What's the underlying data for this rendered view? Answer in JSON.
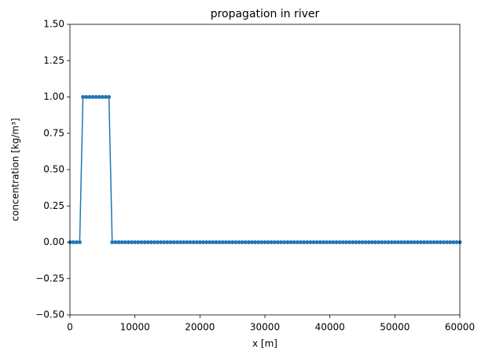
{
  "chart_data": {
    "type": "line",
    "title": "propagation in river",
    "xlabel": "x [m]",
    "ylabel": "concentration [kg/m³]",
    "x": [
      0,
      500,
      1000,
      1500,
      2000,
      2500,
      3000,
      3500,
      4000,
      4500,
      5000,
      5500,
      6000,
      6500,
      7000,
      7500,
      8000,
      8500,
      9000,
      9500,
      10000,
      10500,
      11000,
      11500,
      12000,
      12500,
      13000,
      13500,
      14000,
      14500,
      15000,
      15500,
      16000,
      16500,
      17000,
      17500,
      18000,
      18500,
      19000,
      19500,
      20000,
      20500,
      21000,
      21500,
      22000,
      22500,
      23000,
      23500,
      24000,
      24500,
      25000,
      25500,
      26000,
      26500,
      27000,
      27500,
      28000,
      28500,
      29000,
      29500,
      30000,
      30500,
      31000,
      31500,
      32000,
      32500,
      33000,
      33500,
      34000,
      34500,
      35000,
      35500,
      36000,
      36500,
      37000,
      37500,
      38000,
      38500,
      39000,
      39500,
      40000,
      40500,
      41000,
      41500,
      42000,
      42500,
      43000,
      43500,
      44000,
      44500,
      45000,
      45500,
      46000,
      46500,
      47000,
      47500,
      48000,
      48500,
      49000,
      49500,
      50000,
      50500,
      51000,
      51500,
      52000,
      52500,
      53000,
      53500,
      54000,
      54500,
      55000,
      55500,
      56000,
      56500,
      57000,
      57500,
      58000,
      58500,
      59000,
      59500,
      60000
    ],
    "series": [
      {
        "color": "#1f77b4",
        "values": [
          0,
          0,
          0,
          0,
          1,
          1,
          1,
          1,
          1,
          1,
          1,
          1,
          1,
          0,
          0,
          0,
          0,
          0,
          0,
          0,
          0,
          0,
          0,
          0,
          0,
          0,
          0,
          0,
          0,
          0,
          0,
          0,
          0,
          0,
          0,
          0,
          0,
          0,
          0,
          0,
          0,
          0,
          0,
          0,
          0,
          0,
          0,
          0,
          0,
          0,
          0,
          0,
          0,
          0,
          0,
          0,
          0,
          0,
          0,
          0,
          0,
          0,
          0,
          0,
          0,
          0,
          0,
          0,
          0,
          0,
          0,
          0,
          0,
          0,
          0,
          0,
          0,
          0,
          0,
          0,
          0,
          0,
          0,
          0,
          0,
          0,
          0,
          0,
          0,
          0,
          0,
          0,
          0,
          0,
          0,
          0,
          0,
          0,
          0,
          0,
          0,
          0,
          0,
          0,
          0,
          0,
          0,
          0,
          0,
          0,
          0,
          0,
          0,
          0,
          0,
          0,
          0,
          0,
          0,
          0,
          0
        ]
      }
    ],
    "xlim": [
      0,
      60000
    ],
    "xticks": [
      0,
      10000,
      20000,
      30000,
      40000,
      50000,
      60000
    ],
    "ylim": [
      -0.5,
      1.5
    ],
    "yticks": [
      {
        "value": -0.5,
        "label": "−0.50"
      },
      {
        "value": -0.25,
        "label": "−0.25"
      },
      {
        "value": 0,
        "label": "0.00"
      },
      {
        "value": 0.25,
        "label": "0.25"
      },
      {
        "value": 0.5,
        "label": "0.50"
      },
      {
        "value": 0.75,
        "label": "0.75"
      },
      {
        "value": 1,
        "label": "1.00"
      },
      {
        "value": 1.25,
        "label": "1.25"
      },
      {
        "value": 1.5,
        "label": "1.50"
      }
    ],
    "grid": false
  }
}
